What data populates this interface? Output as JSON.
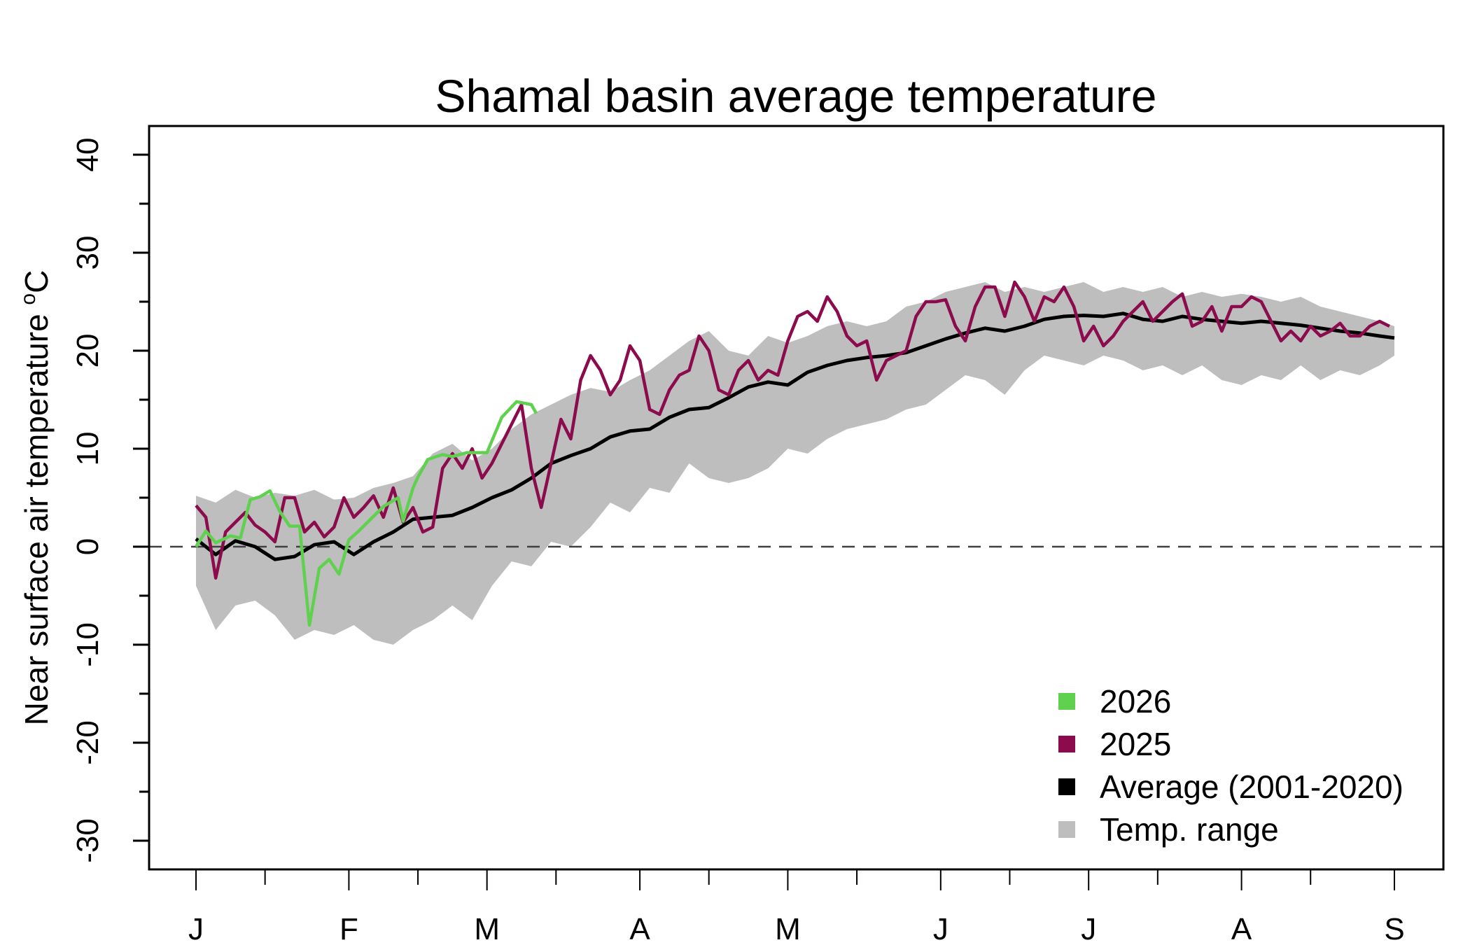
{
  "chart_data": {
    "type": "line",
    "title": "Shamal basin average temperature",
    "xlabel": "",
    "ylabel": "Near surface air temperature",
    "ylabel_unit": "°C",
    "ylim": [
      -30,
      40
    ],
    "yticks_major": [
      -30,
      -20,
      -10,
      0,
      10,
      20,
      30,
      40
    ],
    "yticks_minor": [
      -25,
      -15,
      -5,
      5,
      15,
      25,
      35
    ],
    "xlim_days": [
      0,
      243
    ],
    "x_unit": "day of year (0 = Jan 1)",
    "xticks": [
      {
        "label": "J",
        "day": 0
      },
      {
        "label": "F",
        "day": 31
      },
      {
        "label": "M",
        "day": 59
      },
      {
        "label": "A",
        "day": 90
      },
      {
        "label": "M",
        "day": 120
      },
      {
        "label": "J",
        "day": 151
      },
      {
        "label": "J",
        "day": 181
      },
      {
        "label": "A",
        "day": 212
      },
      {
        "label": "S",
        "day": 243
      }
    ],
    "xticks_minor_days": [
      14,
      45,
      73,
      104,
      134,
      165,
      195,
      226
    ],
    "reference_line": {
      "y": 0,
      "style": "dashed",
      "color": "#404040"
    },
    "grid": false,
    "legend": {
      "position": "bottom-right",
      "entries": [
        {
          "label": "2026",
          "color": "#5fd14e"
        },
        {
          "label": "2025",
          "color": "#8b0b4d"
        },
        {
          "label": "Average (2001-2020)",
          "color": "#000000"
        },
        {
          "label": "Temp. range",
          "color": "#bebebe"
        }
      ]
    },
    "series": [
      {
        "name": "Temp. range",
        "kind": "band",
        "color": "#bebebe",
        "x": [
          0,
          4,
          8,
          12,
          16,
          20,
          24,
          28,
          32,
          36,
          40,
          44,
          48,
          52,
          56,
          60,
          64,
          68,
          72,
          76,
          80,
          84,
          88,
          92,
          96,
          100,
          104,
          108,
          112,
          116,
          120,
          124,
          128,
          132,
          136,
          140,
          144,
          148,
          152,
          156,
          160,
          164,
          168,
          172,
          176,
          180,
          184,
          188,
          192,
          196,
          200,
          204,
          208,
          212,
          216,
          220,
          224,
          228,
          232,
          236,
          240,
          243
        ],
        "upper": [
          5.2,
          4.5,
          5.8,
          5.0,
          5.5,
          5.2,
          5.8,
          4.8,
          5.0,
          6.0,
          6.5,
          7.2,
          9.5,
          10.5,
          8.8,
          10.0,
          12.0,
          13.5,
          14.5,
          15.5,
          16.2,
          15.8,
          17.0,
          18.0,
          19.5,
          21.0,
          22.0,
          20.0,
          19.5,
          21.5,
          20.8,
          21.5,
          22.5,
          23.0,
          22.5,
          23.0,
          24.5,
          25.0,
          26.0,
          26.5,
          27.0,
          26.0,
          26.5,
          26.0,
          26.5,
          27.0,
          26.0,
          26.5,
          26.0,
          26.5,
          25.5,
          26.0,
          25.5,
          25.8,
          25.5,
          25.0,
          25.5,
          24.5,
          24.0,
          23.5,
          23.0,
          22.5
        ],
        "lower": [
          -4.0,
          -8.5,
          -6.0,
          -5.5,
          -7.0,
          -9.5,
          -8.5,
          -9.0,
          -8.0,
          -9.5,
          -10.0,
          -8.5,
          -7.5,
          -6.0,
          -7.5,
          -4.0,
          -1.5,
          -2.0,
          0.5,
          0.0,
          2.0,
          4.5,
          3.5,
          6.0,
          5.5,
          8.5,
          7.0,
          6.5,
          7.0,
          8.0,
          10.0,
          9.5,
          11.0,
          12.0,
          12.5,
          13.0,
          14.0,
          14.5,
          16.0,
          17.5,
          17.0,
          15.5,
          18.0,
          19.5,
          19.0,
          18.5,
          19.5,
          19.0,
          18.0,
          18.5,
          17.5,
          18.5,
          17.0,
          16.5,
          17.5,
          17.0,
          18.5,
          17.0,
          18.0,
          17.5,
          18.5,
          19.5
        ]
      },
      {
        "name": "Average (2001-2020)",
        "kind": "line",
        "color": "#000000",
        "x": [
          0,
          4,
          8,
          12,
          16,
          20,
          24,
          28,
          32,
          36,
          40,
          44,
          48,
          52,
          56,
          60,
          64,
          68,
          72,
          76,
          80,
          84,
          88,
          92,
          96,
          100,
          104,
          108,
          112,
          116,
          120,
          124,
          128,
          132,
          136,
          140,
          144,
          148,
          152,
          156,
          160,
          164,
          168,
          172,
          176,
          180,
          184,
          188,
          192,
          196,
          200,
          204,
          208,
          212,
          216,
          220,
          224,
          228,
          232,
          236,
          240,
          243
        ],
        "values": [
          0.8,
          -0.8,
          0.6,
          0.0,
          -1.3,
          -1.0,
          0.2,
          0.5,
          -0.8,
          0.5,
          1.5,
          2.8,
          3.0,
          3.2,
          4.0,
          5.0,
          5.8,
          7.0,
          8.5,
          9.3,
          10.0,
          11.2,
          11.8,
          12.0,
          13.2,
          14.0,
          14.2,
          15.2,
          16.3,
          16.8,
          16.5,
          17.8,
          18.5,
          19.0,
          19.3,
          19.5,
          19.8,
          20.5,
          21.2,
          21.8,
          22.3,
          22.0,
          22.5,
          23.2,
          23.5,
          23.6,
          23.5,
          23.8,
          23.2,
          23.0,
          23.5,
          23.2,
          23.0,
          22.8,
          23.0,
          22.8,
          22.6,
          22.3,
          22.0,
          21.8,
          21.5,
          21.3
        ]
      },
      {
        "name": "2025",
        "kind": "line",
        "color": "#8b0b4d",
        "x": [
          0,
          2,
          4,
          6,
          8,
          10,
          12,
          14,
          16,
          18,
          20,
          22,
          24,
          26,
          28,
          30,
          32,
          34,
          36,
          38,
          40,
          42,
          44,
          46,
          48,
          50,
          52,
          54,
          56,
          58,
          60,
          62,
          64,
          66,
          68,
          70,
          72,
          74,
          76,
          78,
          80,
          82,
          84,
          86,
          88,
          90,
          92,
          94,
          96,
          98,
          100,
          102,
          104,
          106,
          108,
          110,
          112,
          114,
          116,
          118,
          120,
          122,
          124,
          126,
          128,
          130,
          132,
          134,
          136,
          138,
          140,
          142,
          144,
          146,
          148,
          150,
          152,
          154,
          156,
          158,
          160,
          162,
          164,
          166,
          168,
          170,
          172,
          174,
          176,
          178,
          180,
          182,
          184,
          186,
          188,
          190,
          192,
          194,
          196,
          198,
          200,
          202,
          204,
          206,
          208,
          210,
          212,
          214,
          216,
          218,
          220,
          222,
          224,
          226,
          228,
          230,
          232,
          234,
          236,
          238,
          240,
          242
        ],
        "values": [
          4.2,
          3.0,
          -3.2,
          1.5,
          2.5,
          3.5,
          2.2,
          1.5,
          0.5,
          5.0,
          5.0,
          1.5,
          2.5,
          1.0,
          2.0,
          5.0,
          3.0,
          4.0,
          5.2,
          3.0,
          6.0,
          2.5,
          4.0,
          1.5,
          2.0,
          8.0,
          9.5,
          8.0,
          10.0,
          7.0,
          8.5,
          10.5,
          12.5,
          14.5,
          8.0,
          4.0,
          8.5,
          13.0,
          11.0,
          17.0,
          19.5,
          18.0,
          15.5,
          17.0,
          20.5,
          19.0,
          14.0,
          13.5,
          16.0,
          17.5,
          18.0,
          21.5,
          20.0,
          16.0,
          15.5,
          18.0,
          19.0,
          17.0,
          18.0,
          17.5,
          21.0,
          23.5,
          24.0,
          23.0,
          25.5,
          24.0,
          21.5,
          20.5,
          21.0,
          17.0,
          19.0,
          19.5,
          20.0,
          23.5,
          25.0,
          25.0,
          25.2,
          22.5,
          21.0,
          24.5,
          26.5,
          26.5,
          23.5,
          27.0,
          25.5,
          23.0,
          25.5,
          25.0,
          26.5,
          24.5,
          21.0,
          22.5,
          20.5,
          21.5,
          23.0,
          24.0,
          25.0,
          23.0,
          24.0,
          25.0,
          25.8,
          22.5,
          23.0,
          24.5,
          22.0,
          24.5,
          24.5,
          25.5,
          25.0,
          23.0,
          21.0,
          22.0,
          21.0,
          22.5,
          21.5,
          22.0,
          22.8,
          21.5,
          21.5,
          22.5,
          23.0,
          22.5
        ]
      },
      {
        "name": "2026",
        "kind": "line",
        "color": "#5fd14e",
        "x": [
          0,
          2,
          4,
          7,
          9,
          11,
          13,
          15,
          17,
          19,
          21,
          23,
          25,
          27,
          29,
          31,
          33,
          35,
          38,
          41,
          42,
          44,
          45,
          47,
          50,
          52,
          55,
          59,
          62,
          65,
          68,
          69
        ],
        "values": [
          0.0,
          1.6,
          0.4,
          1.1,
          0.9,
          4.8,
          5.1,
          5.7,
          3.6,
          2.1,
          2.1,
          -8.0,
          -2.2,
          -1.3,
          -2.8,
          0.7,
          1.6,
          2.6,
          4.1,
          5.0,
          2.6,
          6.0,
          7.1,
          8.9,
          9.4,
          9.2,
          9.6,
          9.6,
          13.2,
          14.8,
          14.5,
          13.6
        ]
      }
    ]
  }
}
